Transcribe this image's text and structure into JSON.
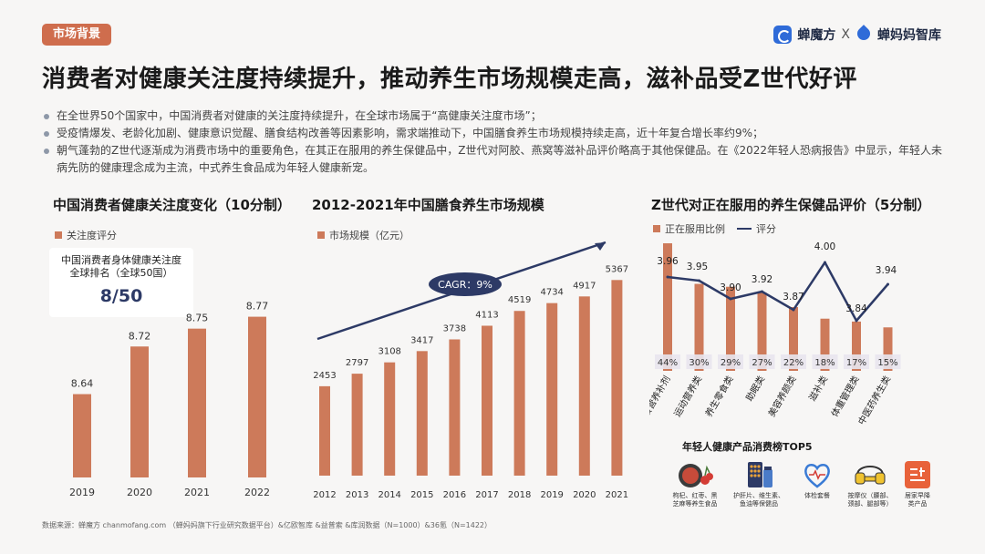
{
  "tag": "市场背景",
  "brand": {
    "left": "蝉魔方",
    "sep": "X",
    "right": "蝉妈妈智库"
  },
  "title": "消费者对健康关注度持续提升，推动养生市场规模走高，滋补品受Z世代好评",
  "bullets": [
    "在全世界50个国家中，中国消费者对健康的关注度持续提升，在全球市场属于“高健康关注度市场”；",
    "受疫情爆发、老龄化加剧、健康意识觉醒、膳食结构改善等因素影响，需求端推动下，中国膳食养生市场规模持续走高，近十年复合增长率约9%；",
    "朝气蓬勃的Z世代逐渐成为消费市场中的重要角色，在其正在服用的养生保健品中，Z世代对阿胶、燕窝等滋补品评价略高于其他保健品。在《2022年轻人恐病报告》中显示，年轻人未病先防的健康理念成为主流，中式养生食品成为年轻人健康新宠。"
  ],
  "rankbox": {
    "line1": "中国消费者身体健康关注度",
    "line2": "全球排名（全球50国）",
    "value": "8/50"
  },
  "colors": {
    "bar": "#cd7a5a",
    "line": "#2d3a66",
    "accent": "#cf6d4d"
  },
  "top5": {
    "title": "年轻人健康产品消费榜TOP5",
    "items": [
      {
        "icon": "goji-jujube-icon",
        "label1": "枸杞、红枣、黑",
        "label2": "芝麻等养生食品"
      },
      {
        "icon": "supplement-bottle-icon",
        "label1": "护肝片、维生素、",
        "label2": "鱼油等保健品"
      },
      {
        "icon": "health-checkup-icon",
        "label1": "体检套餐",
        "label2": ""
      },
      {
        "icon": "massager-icon",
        "label1": "按摩仪（腰部、",
        "label2": "颈部、腿部等）"
      },
      {
        "icon": "hair-product-icon",
        "label1": "居家早降",
        "label2": "类产品"
      }
    ]
  },
  "source": "数据来源：蝉魔方 chanmofang.com （蝉妈妈旗下行业研究数据平台）&亿欧智库 &益普索 &库润数据（N=1000）&36氪（N=1422）",
  "chart_data": [
    {
      "type": "bar",
      "title": "中国消费者健康关注度变化（10分制）",
      "legend": [
        "关注度评分"
      ],
      "categories": [
        "2019",
        "2020",
        "2021",
        "2022"
      ],
      "values": [
        8.64,
        8.72,
        8.75,
        8.77
      ],
      "data_labels": [
        "8.64",
        "8.72",
        "8.75",
        "8.77"
      ],
      "ylim": [
        8.5,
        8.8
      ]
    },
    {
      "type": "bar",
      "title": "2012-2021年中国膳食养生市场规模",
      "legend": [
        "市场规模（亿元）"
      ],
      "categories": [
        "2012",
        "2013",
        "2014",
        "2015",
        "2016",
        "2017",
        "2018",
        "2019",
        "2020",
        "2021"
      ],
      "values": [
        2453,
        2797,
        3108,
        3417,
        3738,
        4113,
        4519,
        4734,
        4917,
        5367
      ],
      "annotation": "CAGR：9%",
      "ylim": [
        0,
        5800
      ]
    },
    {
      "type": "bar",
      "title": "Z世代对正在服用的养生保健品评价（5分制）",
      "legend_bar": "正在服用比例",
      "legend_line": "评分",
      "categories": [
        "膳食营养补剂",
        "运动营养类",
        "养生零食类",
        "助眠类",
        "美容养颜类",
        "滋补类",
        "体重管理类",
        "中医药养生类"
      ],
      "series": [
        {
          "name": "正在服用比例",
          "type": "bar",
          "values": [
            44,
            30,
            29,
            27,
            22,
            18,
            17,
            15
          ],
          "labels": [
            "44%",
            "30%",
            "29%",
            "27%",
            "22%",
            "18%",
            "17%",
            "15%"
          ]
        },
        {
          "name": "评分",
          "type": "line",
          "values": [
            3.96,
            3.95,
            3.9,
            3.92,
            3.87,
            4.0,
            3.84,
            3.94
          ],
          "labels": [
            "3.96",
            "3.95",
            "3.90",
            "3.92",
            "3.87",
            "4.00",
            "3.84",
            "3.94"
          ]
        }
      ]
    }
  ]
}
